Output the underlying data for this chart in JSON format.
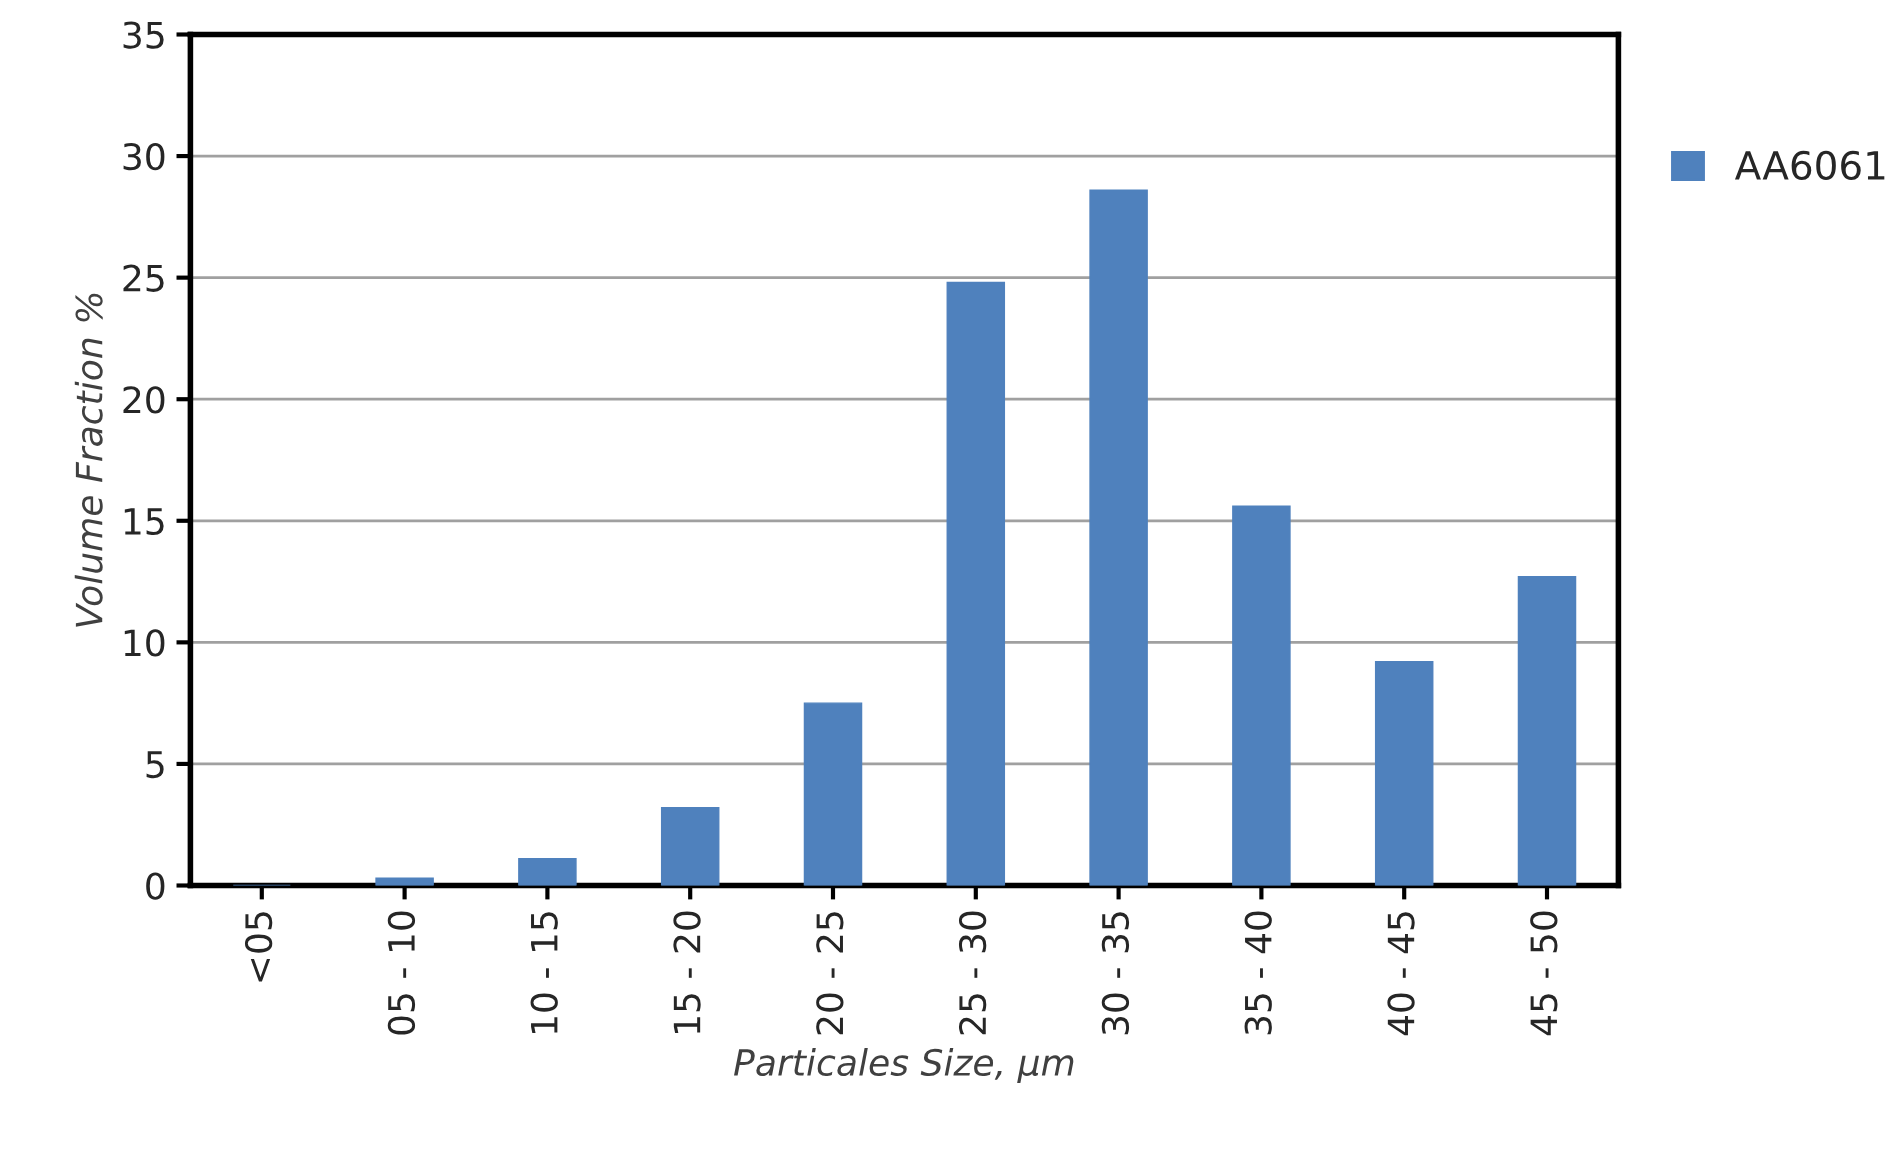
{
  "chart_data": {
    "type": "bar",
    "xlabel": "Particales Size, µm",
    "ylabel": "Volume Fraction %",
    "categories": [
      "<05",
      "05 - 10",
      "10 - 15",
      "15 - 20",
      "20 - 25",
      "25 - 30",
      "30 - 35",
      "35 - 40",
      "40 - 45",
      "45 - 50"
    ],
    "series": [
      {
        "name": "AA6061",
        "color": "#4f81bd",
        "values": [
          0,
          0.3,
          1.1,
          3.2,
          7.5,
          24.8,
          28.6,
          15.6,
          9.2,
          12.7
        ]
      }
    ],
    "ylim": [
      0,
      35
    ],
    "yticks": [
      0,
      5,
      10,
      15,
      20,
      25,
      30,
      35
    ],
    "grid": "y",
    "legend": "top right"
  }
}
